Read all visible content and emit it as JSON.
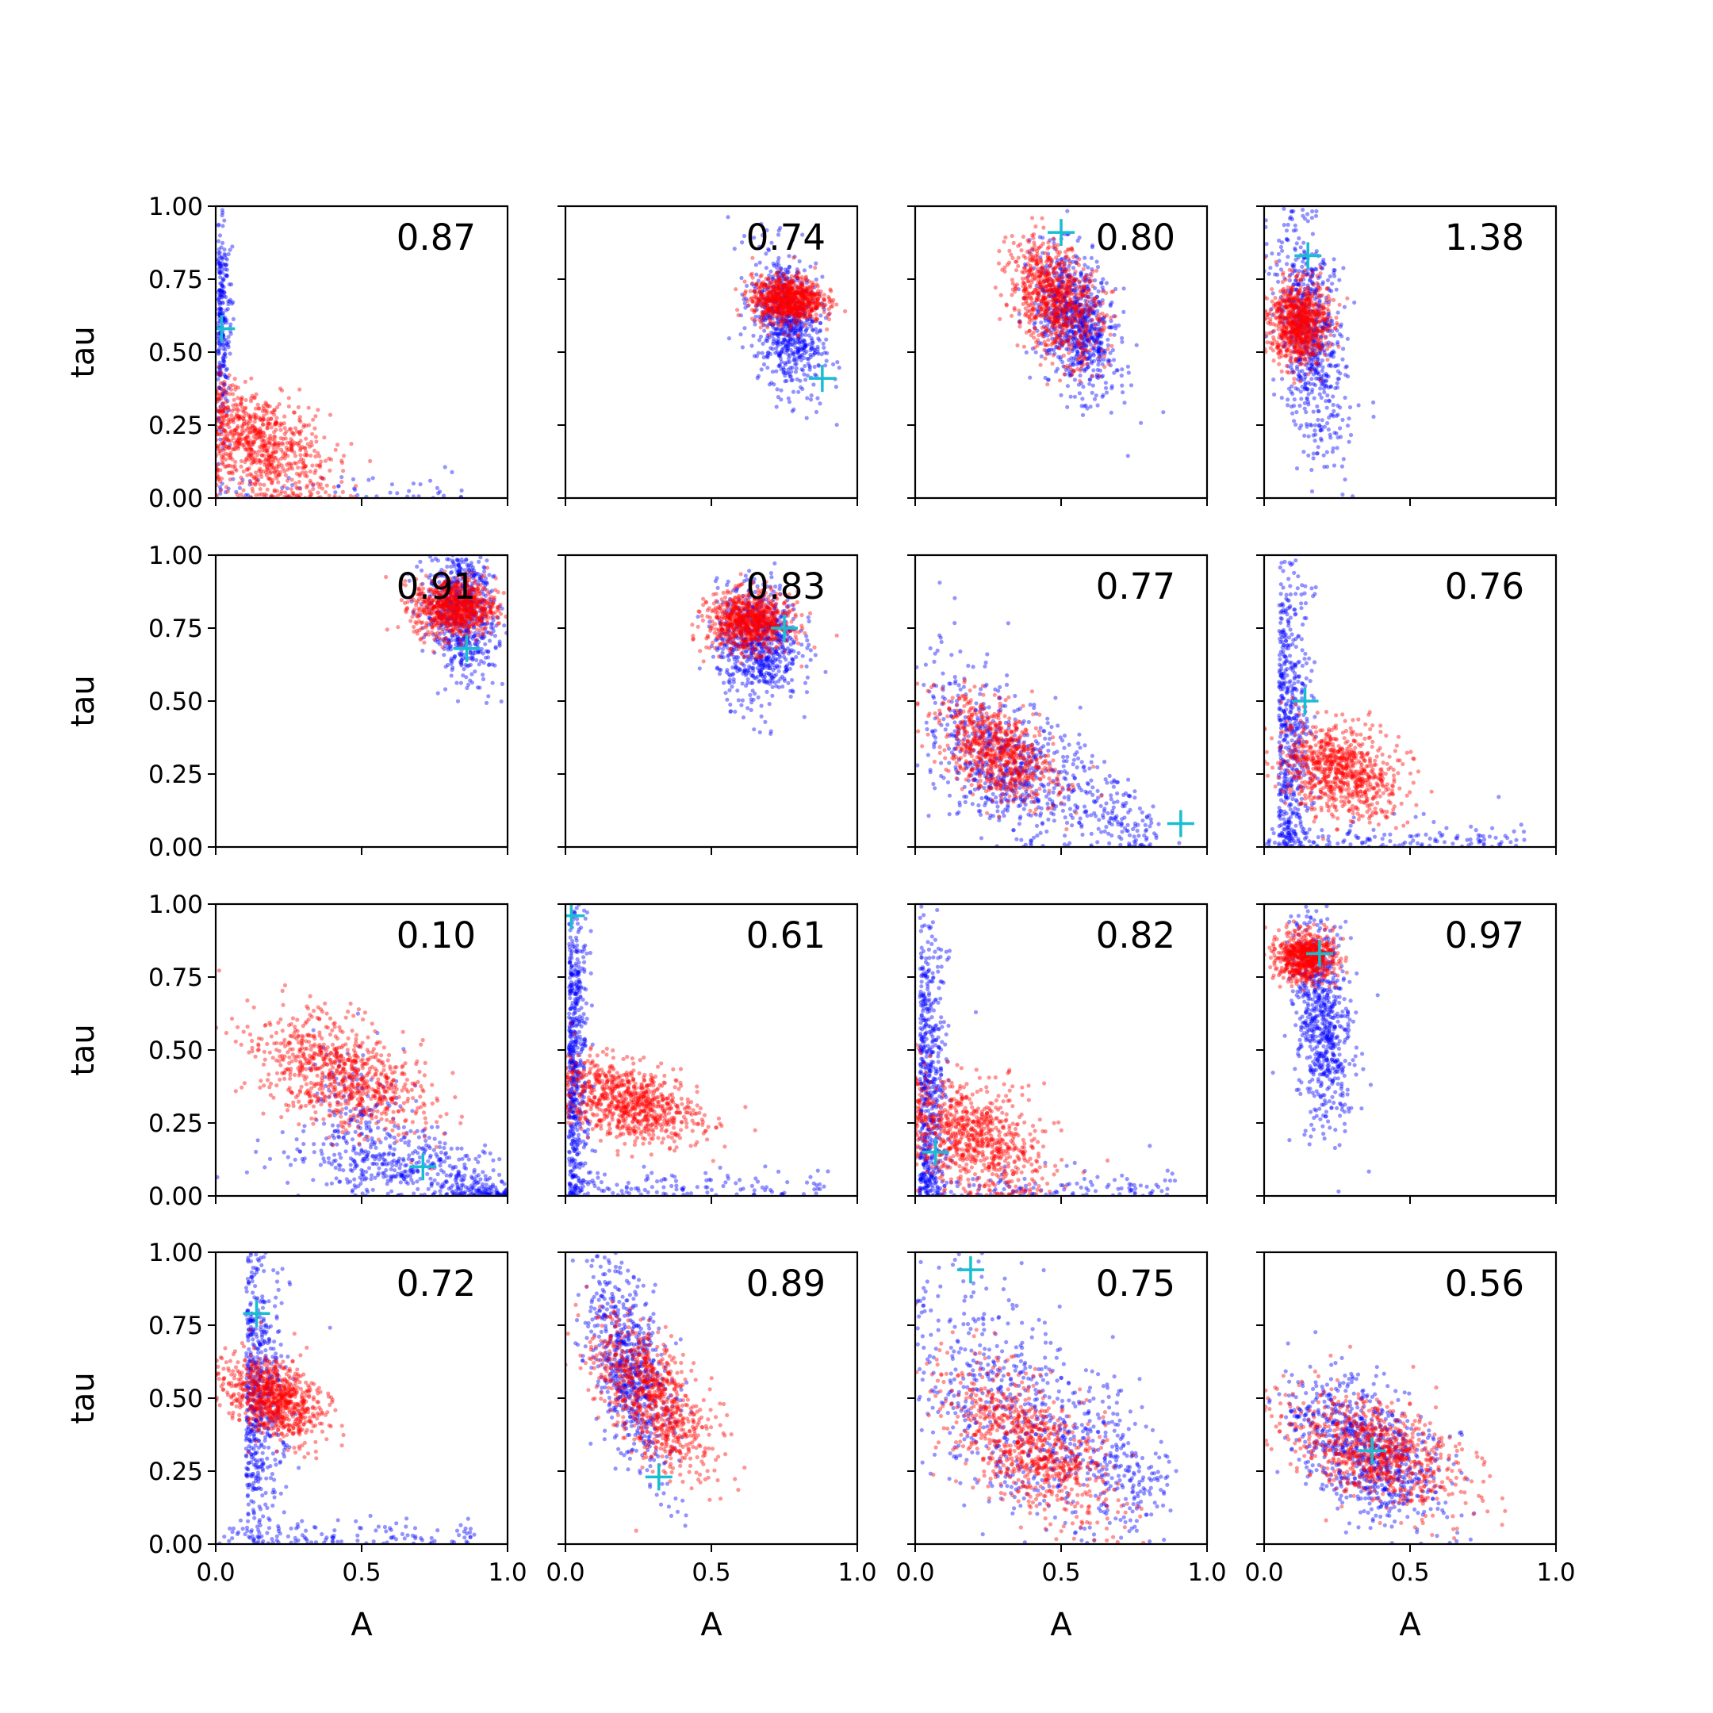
{
  "chart_data": {
    "type": "scatter",
    "layout": "4x4 grid",
    "xlabel": "A",
    "ylabel": "tau",
    "xlim": [
      0,
      1
    ],
    "ylim": [
      0,
      1
    ],
    "x_ticks": [
      "0.0",
      "0.5",
      "1.0"
    ],
    "y_ticks": [
      "0.00",
      "0.25",
      "0.50",
      "0.75",
      "1.00"
    ],
    "series_colors": {
      "cloud_a": "#0000ff",
      "cloud_b": "#ff0000",
      "marker": "#17becf"
    },
    "panels": [
      {
        "value": "0.87",
        "marker": [
          0.02,
          0.58
        ],
        "blue": {
          "shape": "corner",
          "cx": 0.02,
          "cy": 0.6,
          "sx": 0.02,
          "sy": 0.2,
          "n": 320
        },
        "red": {
          "shape": "blob",
          "cx": 0.15,
          "cy": 0.18,
          "sx": 0.12,
          "sy": 0.1,
          "n": 800,
          "rho": -0.4
        }
      },
      {
        "value": "0.74",
        "marker": [
          0.88,
          0.41
        ],
        "blue": {
          "shape": "blob",
          "cx": 0.76,
          "cy": 0.6,
          "sx": 0.06,
          "sy": 0.12,
          "n": 700,
          "rho": -0.3
        },
        "red": {
          "shape": "blob",
          "cx": 0.76,
          "cy": 0.68,
          "sx": 0.06,
          "sy": 0.04,
          "n": 800,
          "rho": 0.0
        }
      },
      {
        "value": "0.80",
        "marker": [
          0.5,
          0.91
        ],
        "blue": {
          "shape": "blob",
          "cx": 0.55,
          "cy": 0.6,
          "sx": 0.07,
          "sy": 0.12,
          "n": 800,
          "rho": -0.4
        },
        "red": {
          "shape": "blob",
          "cx": 0.48,
          "cy": 0.68,
          "sx": 0.08,
          "sy": 0.1,
          "n": 800,
          "rho": -0.4
        }
      },
      {
        "value": "1.38",
        "marker": [
          0.15,
          0.83
        ],
        "blue": {
          "shape": "blob",
          "cx": 0.16,
          "cy": 0.55,
          "sx": 0.06,
          "sy": 0.2,
          "n": 700,
          "rho": -0.4
        },
        "red": {
          "shape": "blob",
          "cx": 0.12,
          "cy": 0.6,
          "sx": 0.05,
          "sy": 0.07,
          "n": 800,
          "rho": 0.0
        }
      },
      {
        "value": "0.91",
        "marker": [
          0.86,
          0.68
        ],
        "blue": {
          "shape": "blob",
          "cx": 0.84,
          "cy": 0.82,
          "sx": 0.06,
          "sy": 0.12,
          "n": 700,
          "rho": -0.2
        },
        "red": {
          "shape": "blob",
          "cx": 0.82,
          "cy": 0.82,
          "sx": 0.07,
          "sy": 0.05,
          "n": 800,
          "rho": 0.0
        }
      },
      {
        "value": "0.83",
        "marker": [
          0.75,
          0.75
        ],
        "blue": {
          "shape": "blob",
          "cx": 0.66,
          "cy": 0.7,
          "sx": 0.07,
          "sy": 0.1,
          "n": 700,
          "rho": 0.0
        },
        "red": {
          "shape": "blob",
          "cx": 0.63,
          "cy": 0.77,
          "sx": 0.07,
          "sy": 0.05,
          "n": 800,
          "rho": 0.0
        }
      },
      {
        "value": "0.77",
        "marker": [
          0.91,
          0.08
        ],
        "blue": {
          "shape": "band",
          "cx": 0.3,
          "cy": 0.25,
          "sx": 0.1,
          "sy": 0.1,
          "n": 800,
          "rho": -0.5
        },
        "red": {
          "shape": "blob",
          "cx": 0.28,
          "cy": 0.33,
          "sx": 0.1,
          "sy": 0.09,
          "n": 700,
          "rho": -0.5
        }
      },
      {
        "value": "0.76",
        "marker": [
          0.14,
          0.5
        ],
        "blue": {
          "shape": "corner",
          "cx": 0.08,
          "cy": 0.45,
          "sx": 0.05,
          "sy": 0.3,
          "n": 700
        },
        "red": {
          "shape": "blob",
          "cx": 0.26,
          "cy": 0.26,
          "sx": 0.1,
          "sy": 0.08,
          "n": 800,
          "rho": -0.3
        }
      },
      {
        "value": "0.10",
        "marker": [
          0.71,
          0.1
        ],
        "blue": {
          "shape": "band",
          "cx": 0.6,
          "cy": 0.1,
          "sx": 0.2,
          "sy": 0.05,
          "n": 700,
          "rho": -0.3
        },
        "red": {
          "shape": "blob",
          "cx": 0.42,
          "cy": 0.42,
          "sx": 0.15,
          "sy": 0.1,
          "n": 800,
          "rho": -0.5
        }
      },
      {
        "value": "0.61",
        "marker": [
          0.02,
          0.96
        ],
        "blue": {
          "shape": "corner",
          "cx": 0.03,
          "cy": 0.5,
          "sx": 0.03,
          "sy": 0.3,
          "n": 700
        },
        "red": {
          "shape": "blob",
          "cx": 0.22,
          "cy": 0.32,
          "sx": 0.12,
          "sy": 0.07,
          "n": 800,
          "rho": -0.4
        }
      },
      {
        "value": "0.82",
        "marker": [
          0.07,
          0.15
        ],
        "blue": {
          "shape": "corner",
          "cx": 0.04,
          "cy": 0.4,
          "sx": 0.04,
          "sy": 0.3,
          "n": 700
        },
        "red": {
          "shape": "blob",
          "cx": 0.2,
          "cy": 0.2,
          "sx": 0.12,
          "sy": 0.1,
          "n": 800,
          "rho": -0.4
        }
      },
      {
        "value": "0.97",
        "marker": [
          0.19,
          0.83
        ],
        "blue": {
          "shape": "blob",
          "cx": 0.2,
          "cy": 0.6,
          "sx": 0.05,
          "sy": 0.18,
          "n": 700,
          "rho": -0.2
        },
        "red": {
          "shape": "blob",
          "cx": 0.14,
          "cy": 0.82,
          "sx": 0.05,
          "sy": 0.04,
          "n": 700,
          "rho": 0.0
        }
      },
      {
        "value": "0.72",
        "marker": [
          0.14,
          0.79
        ],
        "blue": {
          "shape": "corner",
          "cx": 0.14,
          "cy": 0.55,
          "sx": 0.06,
          "sy": 0.25,
          "n": 700
        },
        "red": {
          "shape": "blob",
          "cx": 0.2,
          "cy": 0.5,
          "sx": 0.08,
          "sy": 0.07,
          "n": 800,
          "rho": -0.4
        }
      },
      {
        "value": "0.89",
        "marker": [
          0.32,
          0.23
        ],
        "blue": {
          "shape": "blob",
          "cx": 0.22,
          "cy": 0.6,
          "sx": 0.07,
          "sy": 0.17,
          "n": 700,
          "rho": -0.5
        },
        "red": {
          "shape": "blob",
          "cx": 0.3,
          "cy": 0.5,
          "sx": 0.1,
          "sy": 0.13,
          "n": 800,
          "rho": -0.6
        }
      },
      {
        "value": "0.75",
        "marker": [
          0.19,
          0.94
        ],
        "blue": {
          "shape": "band",
          "cx": 0.35,
          "cy": 0.4,
          "sx": 0.2,
          "sy": 0.2,
          "n": 800,
          "rho": -0.7
        },
        "red": {
          "shape": "blob",
          "cx": 0.38,
          "cy": 0.35,
          "sx": 0.14,
          "sy": 0.13,
          "n": 800,
          "rho": -0.6
        }
      },
      {
        "value": "0.56",
        "marker": [
          0.37,
          0.32
        ],
        "blue": {
          "shape": "blob",
          "cx": 0.35,
          "cy": 0.32,
          "sx": 0.13,
          "sy": 0.12,
          "n": 800,
          "rho": -0.5
        },
        "red": {
          "shape": "blob",
          "cx": 0.38,
          "cy": 0.32,
          "sx": 0.15,
          "sy": 0.1,
          "n": 800,
          "rho": -0.5
        }
      }
    ]
  }
}
